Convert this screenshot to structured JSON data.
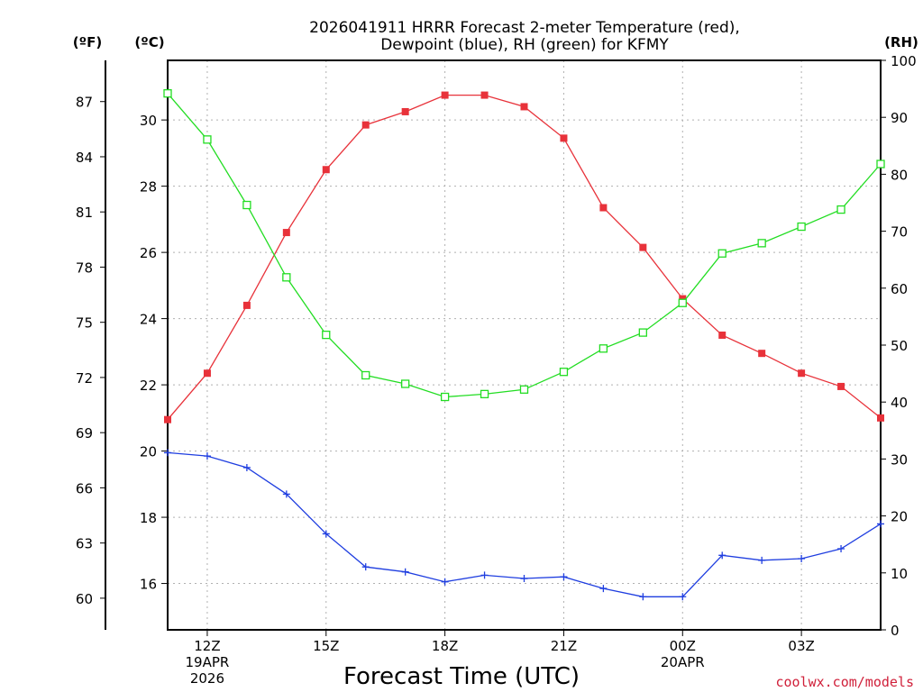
{
  "chart_data": {
    "type": "line",
    "title_line1": "2026041911 HRRR Forecast 2-meter Temperature (red),",
    "title_line2": "Dewpoint (blue), RH (green) for KFMY",
    "xlabel": "Forecast Time (UTC)",
    "credit": "coolwx.com/models",
    "units": {
      "fahrenheit": "(ºF)",
      "celsius": "(ºC)",
      "rh": "(RH)"
    },
    "x_hours": [
      11,
      12,
      13,
      14,
      15,
      16,
      17,
      18,
      19,
      20,
      21,
      22,
      23,
      24,
      25,
      26,
      27,
      28,
      29
    ],
    "xlim": [
      11,
      29
    ],
    "x_ticks": [
      {
        "hour": 12,
        "lines": [
          "12Z",
          "19APR",
          "2026"
        ]
      },
      {
        "hour": 15,
        "lines": [
          "15Z"
        ]
      },
      {
        "hour": 18,
        "lines": [
          "18Z"
        ]
      },
      {
        "hour": 21,
        "lines": [
          "21Z"
        ]
      },
      {
        "hour": 24,
        "lines": [
          "00Z",
          "20APR"
        ]
      },
      {
        "hour": 27,
        "lines": [
          "03Z"
        ]
      }
    ],
    "celsius_axis": {
      "ylim": [
        14.6,
        31.8
      ],
      "ticks": [
        "16",
        "18",
        "20",
        "22",
        "24",
        "26",
        "28",
        "30"
      ]
    },
    "fahrenheit_axis": {
      "ticks": [
        "60",
        "63",
        "66",
        "69",
        "72",
        "75",
        "78",
        "81",
        "84",
        "87"
      ]
    },
    "rh_axis": {
      "ylim": [
        0,
        100
      ],
      "ticks": [
        "0",
        "10",
        "20",
        "30",
        "40",
        "50",
        "60",
        "70",
        "80",
        "90",
        "100"
      ]
    },
    "series": [
      {
        "name": "2-meter Temperature",
        "axis": "celsius",
        "color": "#e8323a",
        "marker": "filled-square",
        "values": [
          20.95,
          22.35,
          24.4,
          26.6,
          28.5,
          29.85,
          30.25,
          30.75,
          30.75,
          30.4,
          29.45,
          27.35,
          26.15,
          24.6,
          23.5,
          22.95,
          22.35,
          21.95,
          21.0
        ]
      },
      {
        "name": "Dewpoint",
        "axis": "celsius",
        "color": "#1f3ee0",
        "marker": "plus",
        "values": [
          19.95,
          19.85,
          19.5,
          18.7,
          17.5,
          16.5,
          16.35,
          16.05,
          16.25,
          16.15,
          16.2,
          15.85,
          15.6,
          15.6,
          16.85,
          16.7,
          16.75,
          17.05,
          17.8
        ]
      },
      {
        "name": "Relative Humidity",
        "axis": "rh",
        "color": "#22dd22",
        "marker": "open-square",
        "values": [
          94.2,
          86.1,
          74.6,
          61.9,
          51.8,
          44.7,
          43.2,
          40.9,
          41.4,
          42.2,
          45.3,
          49.4,
          52.2,
          57.4,
          66.1,
          67.9,
          70.8,
          73.8,
          81.8
        ]
      }
    ]
  }
}
